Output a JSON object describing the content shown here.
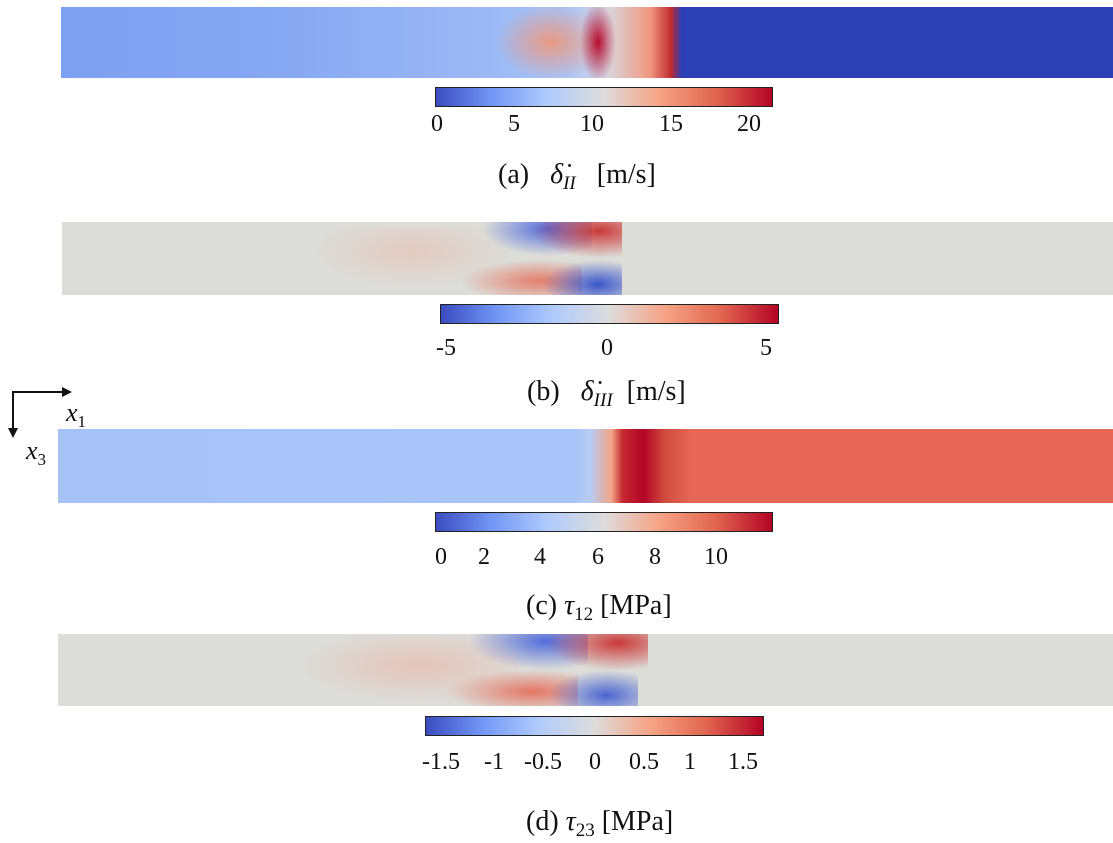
{
  "panels": [
    {
      "caption": {
        "letter": "(a)",
        "symbol": "δ̇",
        "subscript": "II",
        "unit": "[m/s]"
      },
      "colorbar": {
        "ticks": [
          "0",
          "5",
          "10",
          "15",
          "20"
        ],
        "min": 0,
        "max": 21.5
      }
    },
    {
      "caption": {
        "letter": "(b)",
        "symbol": "δ̇",
        "subscript": "III",
        "unit": "[m/s]"
      },
      "colorbar": {
        "ticks": [
          "-5",
          "0",
          "5"
        ],
        "min": -6,
        "max": 6
      }
    },
    {
      "caption": {
        "letter": "(c)",
        "symbol": "τ",
        "subscript": "12",
        "unit": "[MPa]"
      },
      "colorbar": {
        "ticks": [
          "0",
          "2",
          "4",
          "6",
          "8",
          "10"
        ],
        "min": 0,
        "max": 11.5
      }
    },
    {
      "caption": {
        "letter": "(d)",
        "symbol": "τ",
        "subscript": "23",
        "unit": "[MPa]"
      },
      "colorbar": {
        "ticks": [
          "-1.5",
          "-1",
          "-0.5",
          "0",
          "0.5",
          "1",
          "1.5"
        ],
        "min": -1.8,
        "max": 1.8
      }
    }
  ],
  "axes": {
    "x1": {
      "symbol": "x",
      "sub": "1"
    },
    "x3": {
      "symbol": "x",
      "sub": "3"
    }
  },
  "colors": {
    "cold": "#2b40b4",
    "neutral": "#dcdcd8",
    "warm": "#e66755",
    "hot": "#b40426"
  }
}
